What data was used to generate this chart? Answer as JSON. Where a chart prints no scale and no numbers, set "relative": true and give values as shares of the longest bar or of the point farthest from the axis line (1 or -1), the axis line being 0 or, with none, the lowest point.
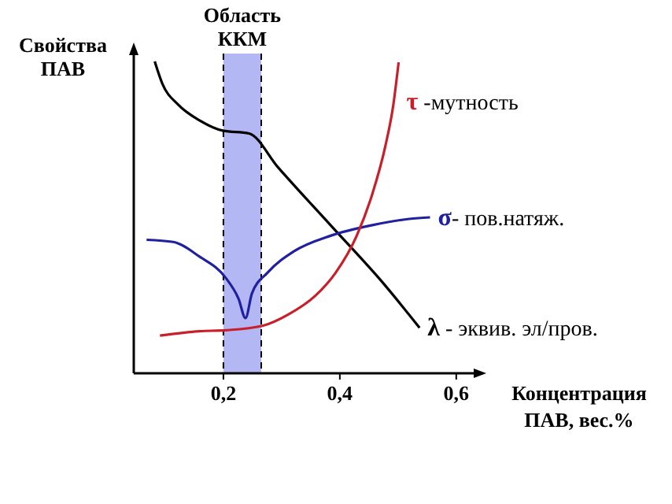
{
  "chart_data": {
    "type": "line",
    "relative": true,
    "ylabel": "Свойства\nПАВ",
    "xlabel": "Концентрация\nПАВ, вес.%",
    "xlim": [
      0.046,
      0.63
    ],
    "xticks": [
      {
        "value": 0.2,
        "label": "0,2"
      },
      {
        "value": 0.4,
        "label": "0,4"
      },
      {
        "value": 0.6,
        "label": "0,6"
      }
    ],
    "bands": [
      {
        "axis": "x",
        "from": 0.2,
        "to": 0.265,
        "label": "Область\nККМ",
        "color": "#b3b8f5"
      }
    ],
    "series": [
      {
        "name": "λ - эквив. эл/пров.",
        "color": "#000000",
        "x": [
          0.082,
          0.095,
          0.122,
          0.159,
          0.199,
          0.244,
          0.294,
          0.384,
          0.474,
          0.537
        ],
        "values": [
          1.0,
          0.929,
          0.862,
          0.811,
          0.778,
          0.769,
          0.66,
          0.475,
          0.29,
          0.146
        ]
      },
      {
        "name": "σ- пов.натяж.",
        "color": "#2020a0",
        "x": [
          0.068,
          0.114,
          0.159,
          0.204,
          0.226,
          0.238,
          0.249,
          0.276,
          0.321,
          0.384,
          0.456,
          0.519,
          0.555
        ],
        "values": [
          0.428,
          0.421,
          0.374,
          0.306,
          0.239,
          0.177,
          0.256,
          0.323,
          0.391,
          0.441,
          0.475,
          0.495,
          0.5
        ]
      },
      {
        "name": "τ -мутность",
        "color": "#c8202a",
        "x": [
          0.091,
          0.159,
          0.204,
          0.267,
          0.312,
          0.357,
          0.393,
          0.429,
          0.456,
          0.478,
          0.492,
          0.501
        ],
        "values": [
          0.121,
          0.135,
          0.138,
          0.152,
          0.189,
          0.247,
          0.323,
          0.441,
          0.576,
          0.727,
          0.862,
          0.997
        ]
      }
    ]
  }
}
